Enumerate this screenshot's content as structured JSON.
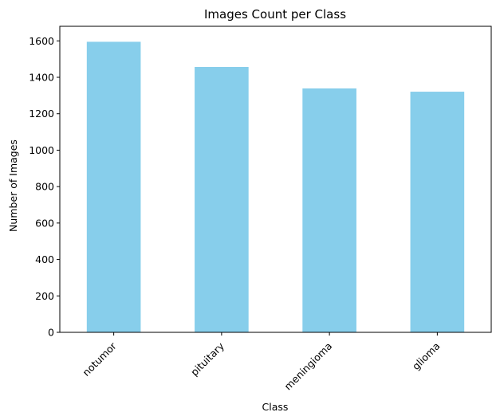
{
  "chart_data": {
    "type": "bar",
    "title": "Images Count per Class",
    "xlabel": "Class",
    "ylabel": "Number of Images",
    "categories": [
      "notumor",
      "pituitary",
      "meningioma",
      "glioma"
    ],
    "values": [
      1595,
      1457,
      1339,
      1321
    ],
    "ylim": [
      0,
      1680
    ],
    "yticks": [
      0,
      200,
      400,
      600,
      800,
      1000,
      1200,
      1400,
      1600
    ],
    "grid": false,
    "bar_color": "#87ceeb",
    "xtick_rotation_deg": 45
  }
}
